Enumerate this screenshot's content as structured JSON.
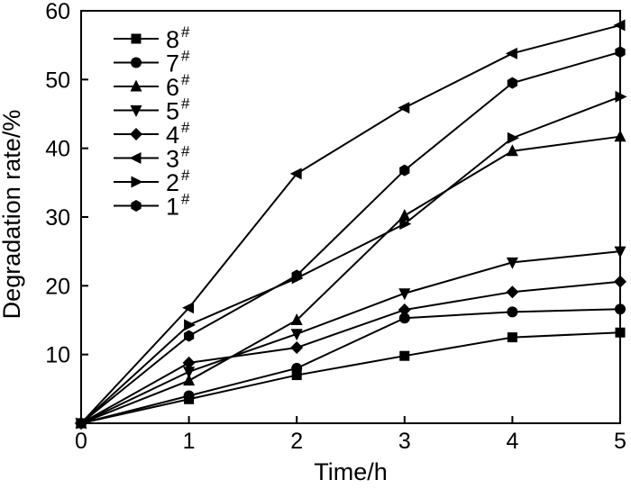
{
  "chart_data": {
    "type": "line",
    "title": "",
    "xlabel": "Time/h",
    "ylabel": "Degradation rate/%",
    "xlim": [
      0,
      5
    ],
    "ylim": [
      0,
      60
    ],
    "xticks": [
      "0",
      "1",
      "2",
      "3",
      "4",
      "5"
    ],
    "yticks": [
      "10",
      "20",
      "30",
      "40",
      "50",
      "60"
    ],
    "x": [
      0,
      1,
      2,
      3,
      4,
      5
    ],
    "legend_position": "top-left",
    "grid": false,
    "color": "#000000",
    "series": [
      {
        "name": "8",
        "sup": "#",
        "marker": "square",
        "values": [
          0,
          3.5,
          7.0,
          9.8,
          12.5,
          13.2
        ]
      },
      {
        "name": "7",
        "sup": "#",
        "marker": "circle",
        "values": [
          0,
          4.0,
          8.0,
          15.3,
          16.2,
          16.6
        ]
      },
      {
        "name": "6",
        "sup": "#",
        "marker": "triangle-up",
        "values": [
          0,
          6.2,
          15.0,
          30.2,
          39.6,
          41.7
        ]
      },
      {
        "name": "5",
        "sup": "#",
        "marker": "triangle-down",
        "values": [
          0,
          7.5,
          13.0,
          18.9,
          23.4,
          25.0
        ]
      },
      {
        "name": "4",
        "sup": "#",
        "marker": "diamond",
        "values": [
          0,
          8.8,
          11.0,
          16.5,
          19.1,
          20.6
        ]
      },
      {
        "name": "3",
        "sup": "#",
        "marker": "triangle-left",
        "values": [
          0,
          16.8,
          36.3,
          45.9,
          53.8,
          57.9
        ]
      },
      {
        "name": "2",
        "sup": "#",
        "marker": "triangle-right",
        "values": [
          0,
          14.3,
          21.1,
          29.0,
          41.5,
          47.5
        ]
      },
      {
        "name": "1",
        "sup": "#",
        "marker": "hexagon",
        "values": [
          0,
          12.7,
          21.5,
          36.8,
          49.5,
          54.0
        ]
      }
    ]
  }
}
